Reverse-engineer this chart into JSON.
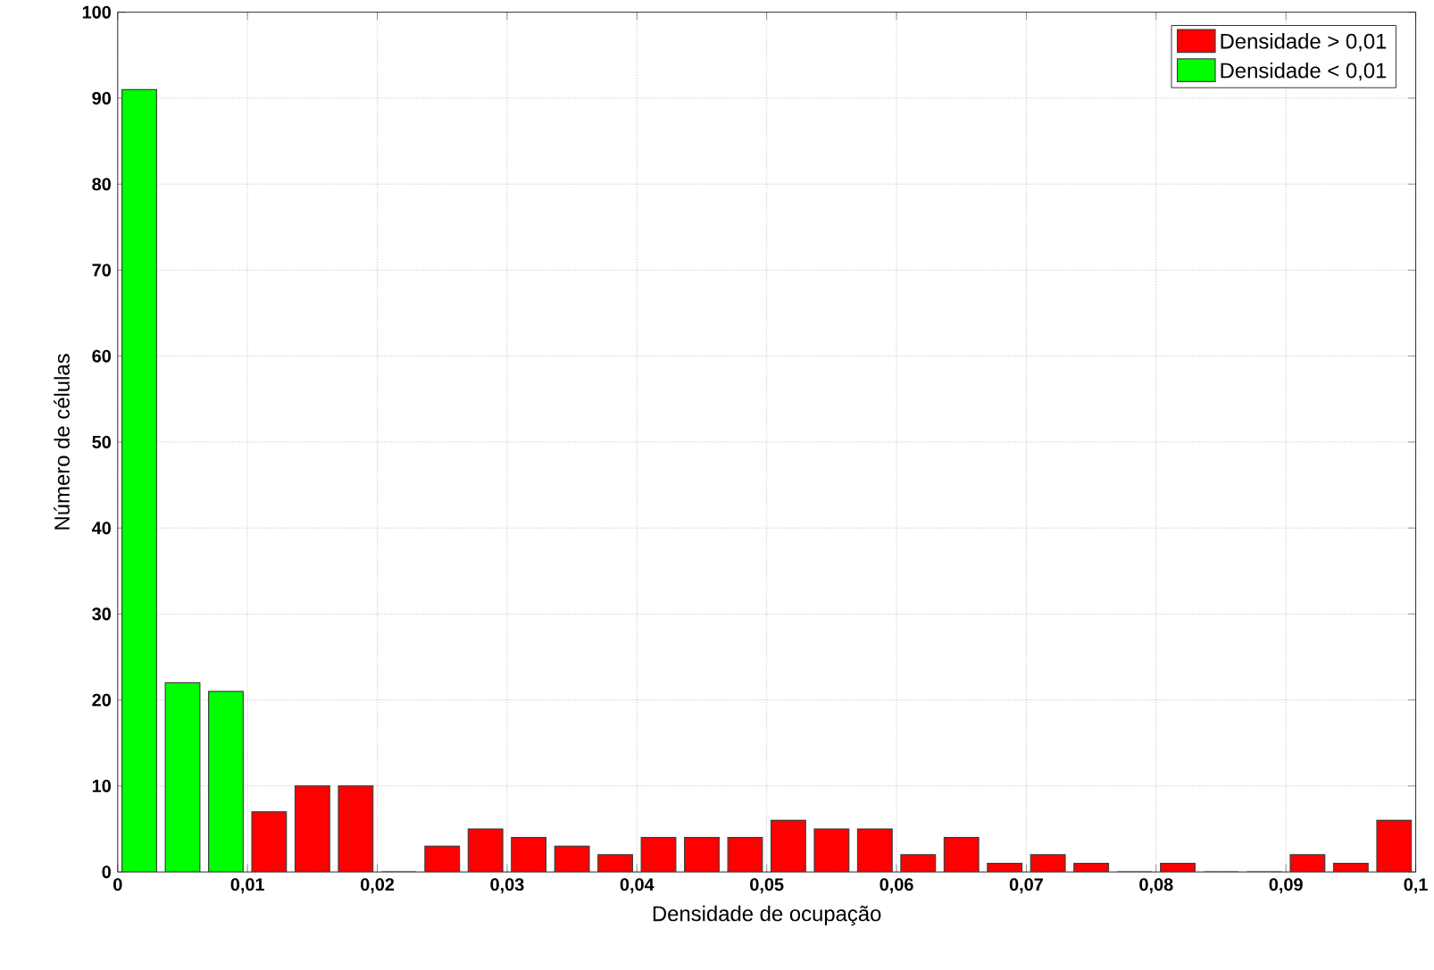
{
  "chart_data": {
    "type": "histogram",
    "xlabel": "Densidade de ocupação",
    "ylabel": "Número de células",
    "bins": [
      0,
      0.00333,
      0.00667,
      0.01,
      0.01333,
      0.01667,
      0.02,
      0.02333,
      0.02667,
      0.03,
      0.03333,
      0.03667,
      0.04,
      0.04333,
      0.04667,
      0.05,
      0.05333,
      0.05667,
      0.06,
      0.06333,
      0.06667,
      0.07,
      0.07333,
      0.07667,
      0.08,
      0.08333,
      0.08667,
      0.09,
      0.09333,
      0.09667,
      0.1
    ],
    "series": [
      {
        "name": "Densidade > 0,01",
        "color": "#ff0000",
        "values": [
          null,
          null,
          null,
          7,
          10,
          10,
          0,
          3,
          5,
          4,
          3,
          2,
          4,
          4,
          4,
          6,
          5,
          5,
          2,
          4,
          1,
          2,
          1,
          0,
          1,
          0,
          0,
          2,
          1,
          6
        ]
      },
      {
        "name": "Densidade < 0,01",
        "color": "#00ff00",
        "values": [
          91,
          22,
          21,
          null,
          null,
          null,
          null,
          null,
          null,
          null,
          null,
          null,
          null,
          null,
          null,
          null,
          null,
          null,
          null,
          null,
          null,
          null,
          null,
          null,
          null,
          null,
          null,
          null,
          null,
          null
        ]
      }
    ],
    "xlim": [
      0,
      0.1
    ],
    "xticks": [
      0,
      {
        "value": 0.01,
        "label": "0,01"
      },
      {
        "value": 0.02,
        "label": "0,02"
      },
      {
        "value": 0.03,
        "label": "0,03"
      },
      {
        "value": 0.04,
        "label": "0,04"
      },
      {
        "value": 0.05,
        "label": "0,05"
      },
      {
        "value": 0.06,
        "label": "0,06"
      },
      {
        "value": 0.07,
        "label": "0,07"
      },
      {
        "value": 0.08,
        "label": "0,08"
      },
      {
        "value": 0.09,
        "label": "0,09"
      },
      {
        "value": 0.1,
        "label": "0,1"
      }
    ],
    "ylim": [
      0,
      100
    ],
    "yticks": [
      0,
      10,
      20,
      30,
      40,
      50,
      60,
      70,
      80,
      90,
      100
    ],
    "grid": true,
    "legend": "top right"
  }
}
